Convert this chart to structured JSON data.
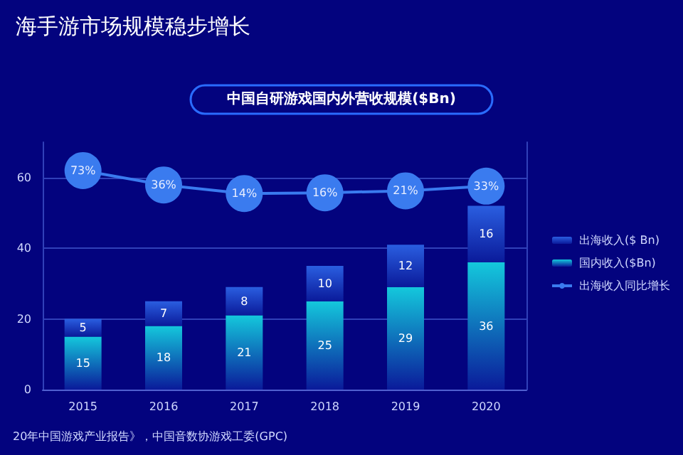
{
  "chart_data": {
    "type": "bar",
    "title": "海手游市场规模稳步增长",
    "subtitle": "中国自研游戏国内外营收规模($Bn)",
    "categories": [
      "2015",
      "2016",
      "2017",
      "2018",
      "2019",
      "2020"
    ],
    "stacked": true,
    "series": [
      {
        "name": "国内收入($Bn)",
        "color": "#14c8dc",
        "values": [
          15,
          18,
          21,
          25,
          29,
          36
        ],
        "value_labels": [
          "15",
          "18",
          "21",
          "25",
          "29",
          "36"
        ]
      },
      {
        "name": "出海收入($ Bn)",
        "color": "#2a5ee0",
        "values": [
          5,
          7,
          8,
          10,
          12,
          16
        ],
        "value_labels": [
          "5",
          "7",
          "8",
          "10",
          "12",
          "16"
        ]
      },
      {
        "name": "出海收入同比增长",
        "type": "line",
        "axis": "y2",
        "color": "#3a7bef",
        "values": [
          73,
          36,
          14,
          16,
          21,
          33
        ],
        "value_labels": [
          "73%",
          "36%",
          "14%",
          "16%",
          "21%",
          "33%"
        ]
      }
    ],
    "ylim": [
      0,
      70
    ],
    "yticks": [
      0,
      20,
      40,
      60
    ],
    "y2lim": [
      -490,
      146
    ],
    "grid": "y",
    "legend": "right",
    "marker": "circle",
    "line_style": "solid",
    "annotations": [
      "20年中国游戏产业报告》，中国音数协游戏工委(GPC)"
    ]
  }
}
